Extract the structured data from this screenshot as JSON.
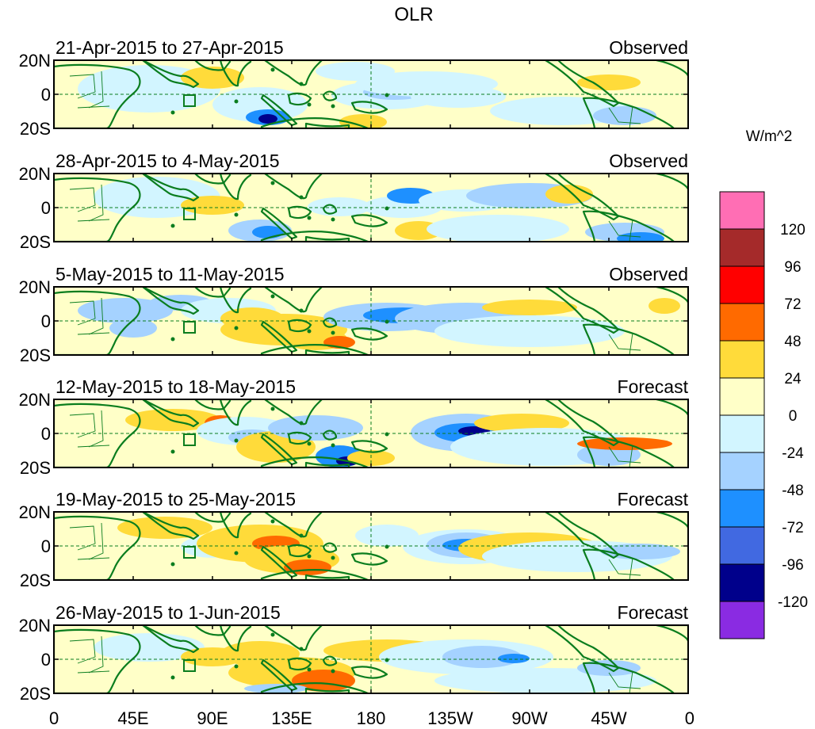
{
  "chart_data": {
    "type": "heatmap",
    "title": "OLR",
    "units": "W/m^2",
    "x_ticks": [
      "0",
      "45E",
      "90E",
      "135E",
      "180",
      "135W",
      "90W",
      "45W",
      "0"
    ],
    "y_ticks": [
      "20N",
      "0",
      "20S"
    ],
    "x_range_deg_east": [
      0,
      360
    ],
    "y_range_deg": [
      -20,
      20
    ],
    "panels": [
      {
        "date_range": "21-Apr-2015 to 27-Apr-2015",
        "type": "Observed"
      },
      {
        "date_range": "28-Apr-2015 to 4-May-2015",
        "type": "Observed"
      },
      {
        "date_range": "5-May-2015 to 11-May-2015",
        "type": "Observed"
      },
      {
        "date_range": "12-May-2015 to 18-May-2015",
        "type": "Forecast"
      },
      {
        "date_range": "19-May-2015 to 25-May-2015",
        "type": "Forecast"
      },
      {
        "date_range": "26-May-2015 to 1-Jun-2015",
        "type": "Forecast"
      }
    ],
    "colorbar": {
      "labels": [
        "120",
        "96",
        "72",
        "48",
        "24",
        "0",
        "-24",
        "-48",
        "-72",
        "-96",
        "-120"
      ],
      "colors": [
        "#ff6eb4",
        "#a52a2a",
        "#ff0000",
        "#ff6a00",
        "#ffdb3a",
        "#ffffc8",
        "#d2f5ff",
        "#a5d2ff",
        "#1e90ff",
        "#4169e1",
        "#00008b",
        "#8a2be2"
      ]
    }
  }
}
